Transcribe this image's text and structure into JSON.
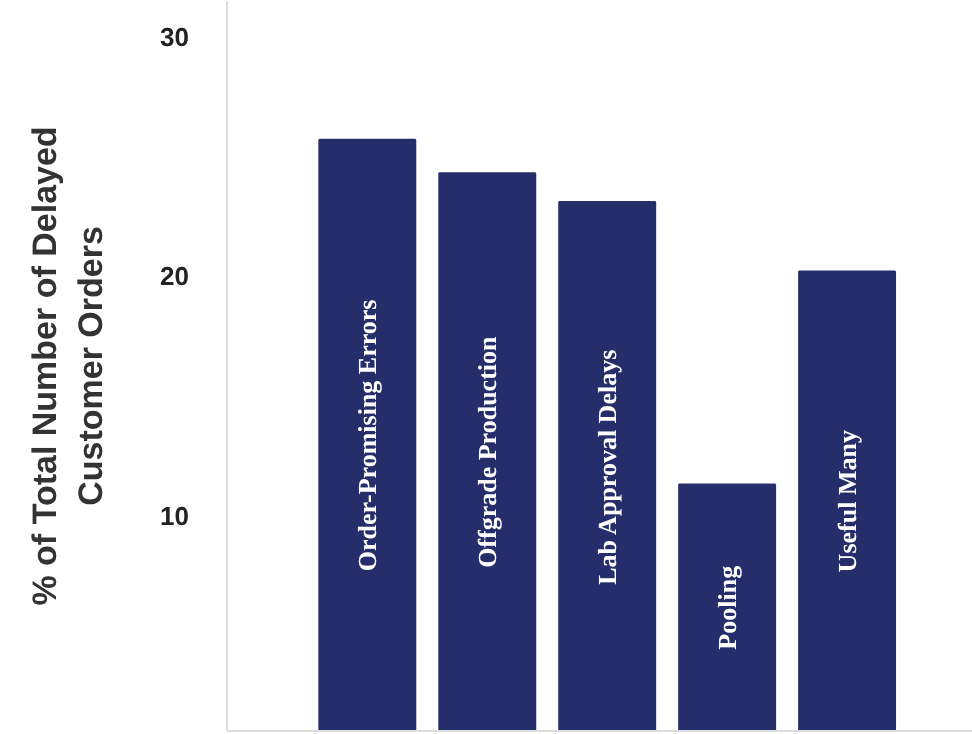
{
  "chart_data": {
    "type": "bar",
    "ylabel": "% of Total Number of Delayed\nCustomer Orders",
    "categories": [
      "Order-Promising Errors",
      "Offgrade Production",
      "Lab Approval Delays",
      "Pooling",
      "Useful Many"
    ],
    "values": [
      25.7,
      24.3,
      23.1,
      11.3,
      20.2
    ],
    "color": "#252e6b",
    "ylim": [
      1,
      31.5
    ],
    "yticks": [
      10,
      20,
      30
    ],
    "grid": false,
    "tick_labels": "y"
  }
}
